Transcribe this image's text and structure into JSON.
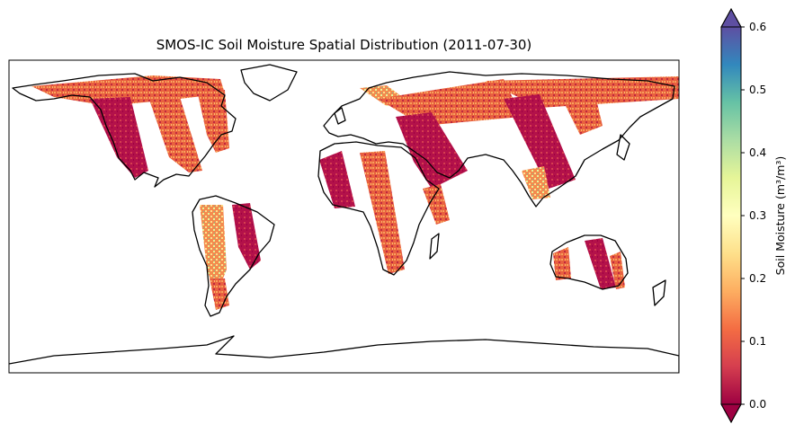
{
  "title": "SMOS-IC Soil Moisture Spatial Distribution (2011-07-30)",
  "colorbar": {
    "label": "Soil Moisture (m³/m³)",
    "colormap": "Spectral",
    "range": [
      0.0,
      0.6
    ],
    "extend": "both",
    "ticks": [
      "0.0",
      "0.1",
      "0.2",
      "0.3",
      "0.4",
      "0.5",
      "0.6"
    ],
    "colors": [
      "#9e0142",
      "#d53e4f",
      "#f46d43",
      "#fdae61",
      "#fee08b",
      "#ffffbf",
      "#e6f598",
      "#abdda4",
      "#66c2a5",
      "#3288bd",
      "#5e4fa2"
    ]
  },
  "map": {
    "projection": "PlateCarree",
    "features": [
      "coastlines"
    ],
    "data_type": "satellite swath soil moisture"
  }
}
